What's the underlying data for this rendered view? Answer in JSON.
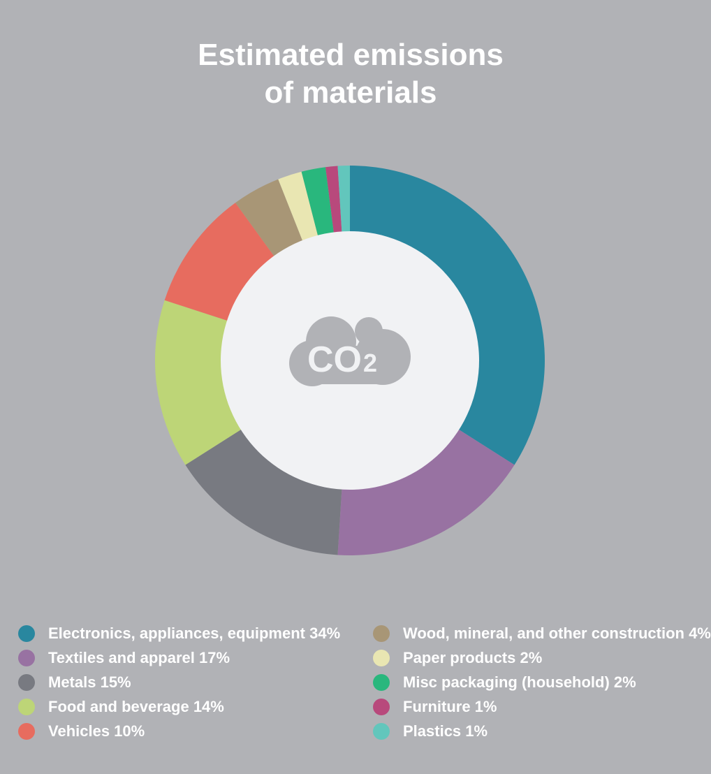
{
  "title": {
    "line1": "Estimated emissions",
    "line2": "of materials"
  },
  "center_icon": {
    "name": "co2-cloud-icon",
    "label_main": "CO",
    "label_sub": "2"
  },
  "chart_data": {
    "type": "pie",
    "title": "Estimated emissions of materials",
    "donut": true,
    "legend_placement": "bottom",
    "slices": [
      {
        "label": "Electronics, appliances, equipment",
        "value": 34,
        "color": "#29879f"
      },
      {
        "label": "Textiles and apparel",
        "value": 17,
        "color": "#9872a2"
      },
      {
        "label": "Metals",
        "value": 15,
        "color": "#787a81"
      },
      {
        "label": "Food and beverage",
        "value": 14,
        "color": "#bdd577"
      },
      {
        "label": "Vehicles",
        "value": 10,
        "color": "#e76c5f"
      },
      {
        "label": "Wood, mineral, and other construction",
        "value": 4,
        "color": "#a89676"
      },
      {
        "label": "Paper products",
        "value": 2,
        "color": "#e9e6b2"
      },
      {
        "label": "Misc packaging (household)",
        "value": 2,
        "color": "#29b77d"
      },
      {
        "label": "Furniture",
        "value": 1,
        "color": "#b8497c"
      },
      {
        "label": "Plastics",
        "value": 1,
        "color": "#62c6bc"
      }
    ]
  },
  "legend": {
    "left": [
      {
        "text": "Electronics, appliances, equipment 34%",
        "color": "#29879f"
      },
      {
        "text": "Textiles and apparel 17%",
        "color": "#9872a2"
      },
      {
        "text": "Metals 15%",
        "color": "#787a81"
      },
      {
        "text": "Food and beverage 14%",
        "color": "#bdd577"
      },
      {
        "text": "Vehicles 10%",
        "color": "#e76c5f"
      }
    ],
    "right": [
      {
        "text": "Wood, mineral, and other construction 4%",
        "color": "#a89676"
      },
      {
        "text": "Paper products 2%",
        "color": "#e9e6b2"
      },
      {
        "text": "Misc packaging (household) 2%",
        "color": "#29b77d"
      },
      {
        "text": "Furniture 1%",
        "color": "#b8497c"
      },
      {
        "text": "Plastics 1%",
        "color": "#62c6bc"
      }
    ]
  }
}
